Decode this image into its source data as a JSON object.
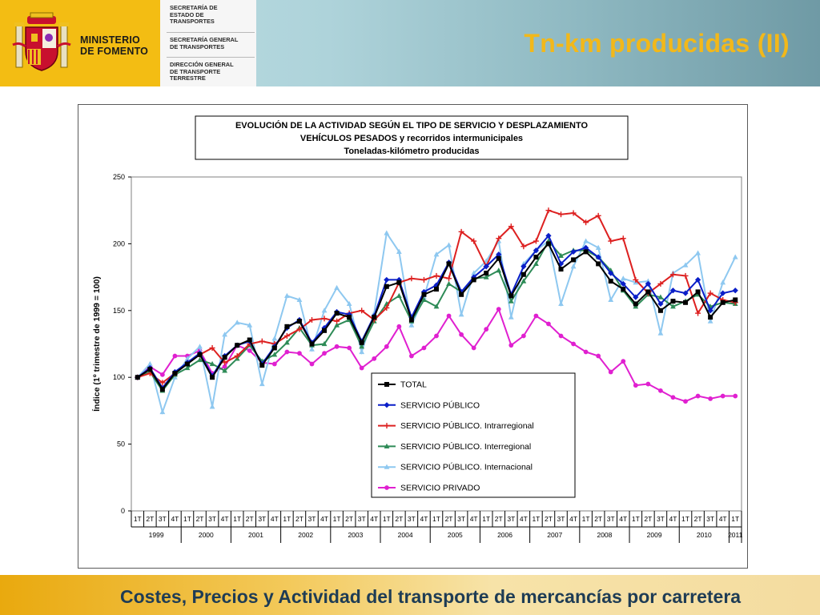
{
  "header": {
    "ministry_name_line1": "MINISTERIO",
    "ministry_name_line2": "DE FOMENTO",
    "departments": [
      {
        "lines": [
          "SECRETARÍA DE",
          "ESTADO DE",
          "TRANSPORTES"
        ]
      },
      {
        "lines": [
          "SECRETARÍA GENERAL",
          "DE TRANSPORTES"
        ]
      },
      {
        "lines": [
          "DIRECCIÓN GENERAL",
          "DE TRANSPORTE",
          "TERRESTRE"
        ]
      }
    ],
    "page_title": "Tn-km producidas (II)"
  },
  "footer": {
    "text": "Costes, Precios y Actividad del transporte de mercancías por carretera"
  },
  "colors": {
    "title_accent": "#f2b81a",
    "footer_text": "#1e3c55",
    "brand_yellow": "#f3bd13"
  },
  "chart_data": {
    "type": "line",
    "title_lines": [
      "EVOLUCIÓN  DE  LA  ACTIVIDAD  SEGÚN  EL  TIPO  DE  SERVICIO  Y  DESPLAZAMIENTO",
      "VEHÍCULOS  PESADOS  y  recorridos  intermunicipales",
      "Toneladas-kilómetro producidas"
    ],
    "ylabel": "Índice (1º trimestre de 1999 = 100)",
    "xlabel": "",
    "ylim": [
      0,
      250
    ],
    "yticks": [
      0,
      50,
      100,
      150,
      200,
      250
    ],
    "quarters": [
      "1T",
      "2T",
      "3T",
      "4T",
      "1T",
      "2T",
      "3T",
      "4T",
      "1T",
      "2T",
      "3T",
      "4T",
      "1T",
      "2T",
      "3T",
      "4T",
      "1T",
      "2T",
      "3T",
      "4T",
      "1T",
      "2T",
      "3T",
      "4T",
      "1T",
      "2T",
      "3T",
      "4T",
      "1T",
      "2T",
      "3T",
      "4T",
      "1T",
      "2T",
      "3T",
      "4T",
      "1T",
      "2T",
      "3T",
      "4T",
      "1T",
      "2T",
      "3T",
      "4T",
      "1T",
      "2T",
      "3T",
      "4T",
      "1T"
    ],
    "years": [
      "1999",
      "2000",
      "2001",
      "2002",
      "2003",
      "2004",
      "2005",
      "2006",
      "2007",
      "2008",
      "2009",
      "2010",
      "2011"
    ],
    "grid": "none",
    "legend_position": "lower-right inside",
    "series": [
      {
        "name": "TOTAL",
        "color": "#000000",
        "marker": "square",
        "values": [
          100,
          106,
          91,
          103,
          110,
          117,
          100,
          115,
          124,
          128,
          109,
          122,
          138,
          142,
          125,
          135,
          148,
          145,
          126,
          145,
          168,
          171,
          143,
          162,
          166,
          185,
          162,
          173,
          178,
          189,
          161,
          177,
          190,
          200,
          181,
          188,
          194,
          185,
          172,
          166,
          155,
          164,
          150,
          157,
          156,
          164,
          145,
          156,
          158
        ]
      },
      {
        "name": "SERVICIO PÚBLICO",
        "color": "#0a1ec8",
        "marker": "diamond",
        "values": [
          100,
          107,
          92,
          104,
          111,
          118,
          101,
          116,
          124,
          127,
          110,
          123,
          137,
          143,
          126,
          137,
          149,
          147,
          127,
          146,
          173,
          173,
          145,
          164,
          169,
          186,
          164,
          175,
          183,
          192,
          162,
          183,
          195,
          206,
          185,
          194,
          197,
          190,
          178,
          170,
          160,
          170,
          155,
          165,
          163,
          173,
          150,
          163,
          165
        ]
      },
      {
        "name": "SERVICIO PÚBLICO. Intrarregional",
        "color": "#dd2020",
        "marker": "plus",
        "values": [
          100,
          103,
          96,
          103,
          111,
          117,
          122,
          111,
          116,
          125,
          127,
          125,
          131,
          136,
          143,
          144,
          142,
          148,
          150,
          143,
          152,
          171,
          174,
          173,
          176,
          174,
          209,
          202,
          183,
          204,
          213,
          198,
          202,
          225,
          222,
          223,
          216,
          221,
          202,
          204,
          173,
          163,
          170,
          177,
          176,
          148,
          163,
          158,
          156
        ]
      },
      {
        "name": "SERVICIO PÚBLICO. Interregional",
        "color": "#2e8b57",
        "marker": "triangle",
        "values": [
          100,
          104,
          90,
          102,
          107,
          113,
          110,
          105,
          114,
          124,
          112,
          117,
          126,
          137,
          124,
          125,
          139,
          143,
          123,
          142,
          155,
          161,
          142,
          158,
          153,
          170,
          164,
          174,
          175,
          180,
          157,
          172,
          185,
          202,
          191,
          195,
          195,
          190,
          180,
          165,
          153,
          162,
          160,
          153,
          157,
          162,
          153,
          156,
          155
        ]
      },
      {
        "name": "SERVICIO PÚBLICO. Internacional",
        "color": "#8ec8f0",
        "marker": "triangle",
        "values": [
          100,
          110,
          74,
          100,
          114,
          123,
          78,
          132,
          141,
          139,
          95,
          129,
          161,
          158,
          121,
          150,
          167,
          155,
          119,
          148,
          208,
          194,
          139,
          160,
          192,
          199,
          147,
          178,
          187,
          202,
          145,
          185,
          195,
          202,
          155,
          183,
          202,
          197,
          158,
          174,
          171,
          172,
          133,
          178,
          184,
          193,
          142,
          171,
          190
        ]
      },
      {
        "name": "SERVICIO PRIVADO",
        "color": "#e020d0",
        "marker": "circle",
        "values": [
          100,
          108,
          102,
          116,
          116,
          120,
          103,
          108,
          124,
          120,
          111,
          110,
          119,
          118,
          110,
          118,
          123,
          122,
          107,
          114,
          123,
          138,
          116,
          122,
          131,
          146,
          132,
          122,
          136,
          151,
          124,
          131,
          146,
          140,
          131,
          125,
          119,
          116,
          104,
          112,
          94,
          95,
          90,
          85,
          82,
          86,
          84,
          86,
          86
        ]
      }
    ]
  }
}
